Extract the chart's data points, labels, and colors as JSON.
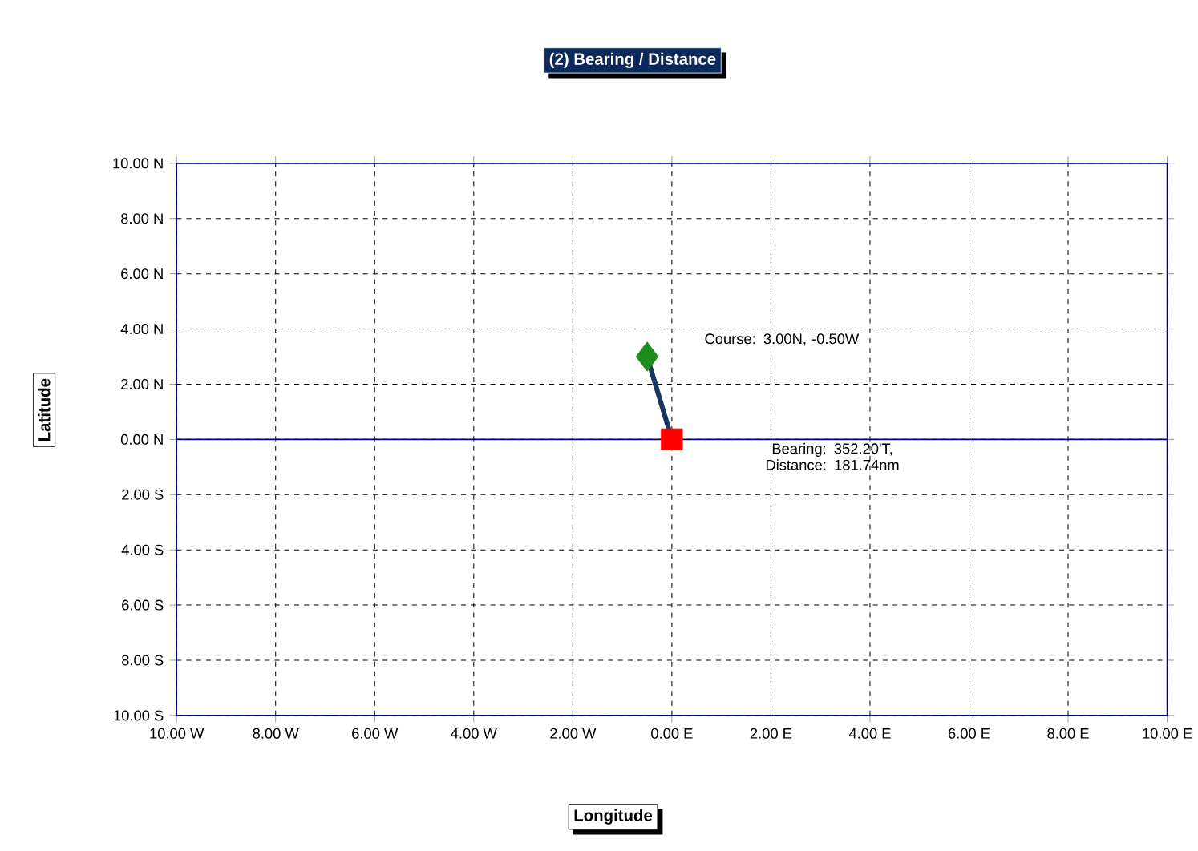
{
  "chart_data": {
    "type": "line",
    "title": "(2) Bearing / Distance",
    "xlabel": "Longitude",
    "ylabel": "Latitude",
    "series": [
      {
        "color": "#17375e",
        "values": [
          0,
          3
        ],
        "line_style": "solid",
        "marker": "none"
      },
      {
        "type": "scatter",
        "color": "#ff0000",
        "values": [
          0,
          null
        ],
        "marker": "square"
      },
      {
        "type": "scatter",
        "color": "#1e8c1e",
        "values": [
          null,
          3
        ],
        "marker": "diamond"
      }
    ],
    "x": [
      0,
      -0.5
    ],
    "xlim": [
      -10,
      10
    ],
    "ylim": [
      -10,
      10
    ],
    "xticks": [
      {
        "value": -10,
        "label": "10.00 W"
      },
      {
        "value": -8,
        "label": "8.00 W"
      },
      {
        "value": -6,
        "label": "6.00 W"
      },
      {
        "value": -4,
        "label": "4.00 W"
      },
      {
        "value": -2,
        "label": "2.00 W"
      },
      {
        "value": 0,
        "label": "0.00 E"
      },
      {
        "value": 2,
        "label": "2.00 E"
      },
      {
        "value": 4,
        "label": "4.00 E"
      },
      {
        "value": 6,
        "label": "6.00 E"
      },
      {
        "value": 8,
        "label": "8.00 E"
      },
      {
        "value": 10,
        "label": "10.00 E"
      }
    ],
    "yticks": [
      {
        "value": -10,
        "label": "10.00 S"
      },
      {
        "value": -8,
        "label": "8.00 S"
      },
      {
        "value": -6,
        "label": "6.00 S"
      },
      {
        "value": -4,
        "label": "4.00 S"
      },
      {
        "value": -2,
        "label": "2.00 S"
      },
      {
        "value": 0,
        "label": "0.00 N"
      },
      {
        "value": 2,
        "label": "2.00 N"
      },
      {
        "value": 4,
        "label": "4.00 N"
      },
      {
        "value": 6,
        "label": "6.00 N"
      },
      {
        "value": 8,
        "label": "8.00 N"
      },
      {
        "value": 10,
        "label": "10.00 N"
      }
    ],
    "grid": true,
    "ref_lines": [
      {
        "axis": "y",
        "value": 0,
        "color": "#000080"
      }
    ],
    "annotations": [
      "Course: 3.00N, -0.50W",
      "Bearing: 352.20'T, Distance: 181.74nm"
    ]
  }
}
